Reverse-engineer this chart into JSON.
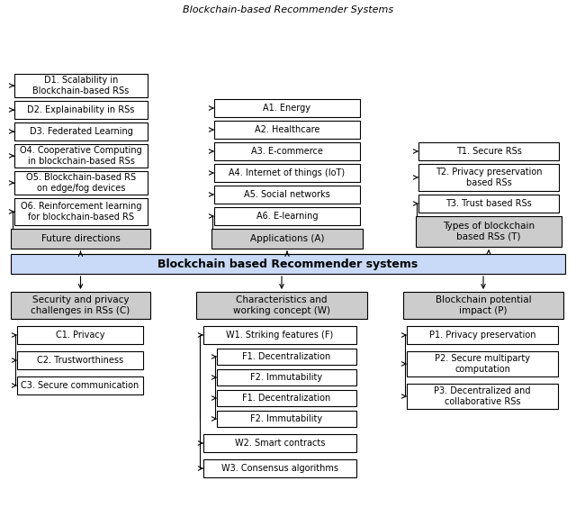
{
  "title": "Blockchain-based Recommender Systems",
  "fig_bg": "#ffffff",
  "main_box": {
    "text": "Blockchain based Recommender systems",
    "fc": "#c9daf8",
    "ec": "#000000",
    "fontsize": 9,
    "bold": true
  },
  "top_items_left": [
    "O6. Reinforcement learning\nfor blockchain-based RS",
    "O5. Blockchain-based RS\non edge/fog devices",
    "O4. Cooperative Computing\nin blockchain-based RSs",
    "D3. Federated Learning",
    "D2. Explainability in RSs",
    "D1. Scalability in\nBlockchain-based RSs"
  ],
  "top_label_left": "Future directions",
  "top_items_mid": [
    "A6. E-learning",
    "A5. Social networks",
    "A4. Internet of things (IoT)",
    "A3. E-commerce",
    "A2. Healthcare",
    "A1. Energy"
  ],
  "top_label_mid": "Applications (A)",
  "top_items_right": [
    "T3. Trust based RSs",
    "T2. Privacy preservation\nbased RSs",
    "T1. Secure RSs"
  ],
  "top_label_right": "Types of blockchain\nbased RSs (T)",
  "bot_label_left": "Security and privacy\nchallenges in RSs (C)",
  "bot_items_left": [
    "C1. Privacy",
    "C2. Trustworthiness",
    "C3. Secure communication"
  ],
  "bot_label_mid": "Characteristics and\nworking concept (W)",
  "bot_items_mid_l1": [
    "W1. Striking features (F)"
  ],
  "bot_items_mid_l2": [
    "F1. Decentralization",
    "F2. Immutability",
    "F1. Decentralization",
    "F2. Immutability"
  ],
  "bot_items_mid_l3": [
    "W2. Smart contracts",
    "W3. Consensus algorithms"
  ],
  "bot_label_right": "Blockchain potential\nimpact (P)",
  "bot_items_right": [
    "P1. Privacy preservation",
    "P2. Secure multiparty\ncomputation",
    "P3. Decentralized and\ncollaborative RSs"
  ]
}
